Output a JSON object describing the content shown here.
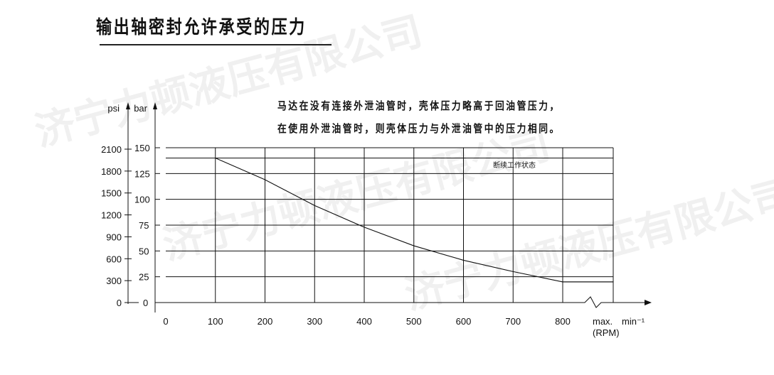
{
  "title": "输出轴密封允许承受的压力",
  "notes": [
    "马达在没有连接外泄油管时，壳体压力略高于回油管压力，",
    "在使用外泄油管时，则壳体压力与外泄油管中的压力相同。"
  ],
  "watermark": "济宁力顿液压有限公司",
  "chart_data": {
    "type": "line",
    "title": "输出轴密封允许承受的压力",
    "x_ticks": [
      "0",
      "100",
      "200",
      "300",
      "400",
      "500",
      "600",
      "700",
      "800"
    ],
    "x_max_label": "max.",
    "x_unit": "min⁻¹",
    "x_unit2": "(RPM)",
    "xlim": [
      0,
      900
    ],
    "y_label": "bar",
    "y_ticks": [
      0,
      25,
      50,
      75,
      100,
      125,
      150
    ],
    "y2_label": "psi",
    "y2_ticks": [
      0,
      300,
      600,
      900,
      1200,
      1500,
      1800,
      2100
    ],
    "ylim": [
      0,
      150
    ],
    "grid": true,
    "extra_gridlines_bar": [
      140,
      20
    ],
    "annotation": "断续工作状态",
    "series": [
      {
        "x": [
          100,
          200,
          300,
          400,
          500,
          600,
          700,
          800,
          "max."
        ],
        "y": [
          140,
          119,
          94,
          73,
          55,
          41,
          30,
          20,
          20
        ]
      }
    ]
  }
}
